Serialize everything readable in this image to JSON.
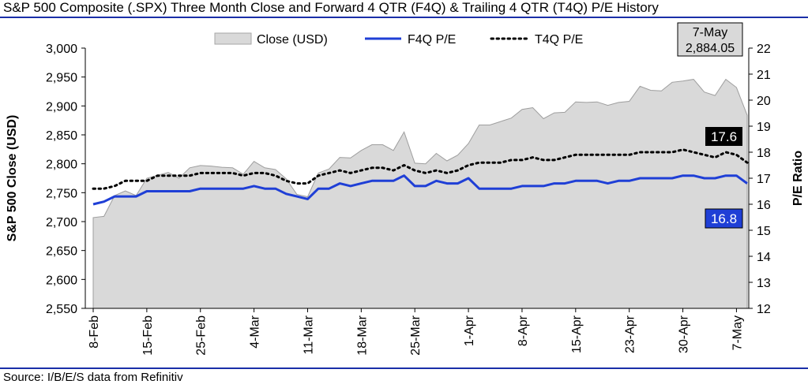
{
  "title": "S&P 500 Composite (.SPX) Three Month Close and Forward 4 QTR (F4Q) & Trailing 4 QTR (T4Q) P/E History",
  "source": "Source: I/B/E/S data from Refinitiv",
  "chart_data": {
    "type": "area",
    "ylabel": "S&P 500 Close (USD)",
    "y2label": "P/E Ratio",
    "ylim": [
      2550,
      3000
    ],
    "y2lim": [
      12,
      22
    ],
    "ticks_left": [
      "2,550",
      "2,600",
      "2,650",
      "2,700",
      "2,750",
      "2,800",
      "2,850",
      "2,900",
      "2,950",
      "3,000"
    ],
    "ticks_right": [
      "12",
      "13",
      "14",
      "15",
      "16",
      "17",
      "18",
      "19",
      "20",
      "21",
      "22"
    ],
    "x_tick_labels": [
      "8-Feb",
      "15-Feb",
      "25-Feb",
      "4-Mar",
      "11-Mar",
      "18-Mar",
      "25-Mar",
      "1-Apr",
      "8-Apr",
      "15-Apr",
      "23-Apr",
      "30-Apr",
      "7-May"
    ],
    "x_tick_index": [
      0,
      5,
      10,
      15,
      20,
      25,
      30,
      35,
      40,
      45,
      50,
      55,
      60
    ],
    "grid": false,
    "legend_position": "top",
    "series": [
      {
        "name": "Close (USD)",
        "axis": "left",
        "color": "#d9d9d9",
        "values": [
          2707,
          2709,
          2745,
          2753,
          2745,
          2775,
          2780,
          2785,
          2775,
          2793,
          2797,
          2796,
          2794,
          2793,
          2782,
          2804,
          2793,
          2790,
          2774,
          2747,
          2743,
          2784,
          2791,
          2811,
          2810,
          2823,
          2833,
          2833,
          2823,
          2855,
          2801,
          2800,
          2818,
          2805,
          2815,
          2835,
          2867,
          2867,
          2873,
          2879,
          2894,
          2897,
          2878,
          2888,
          2889,
          2907,
          2906,
          2907,
          2901,
          2906,
          2908,
          2934,
          2927,
          2926,
          2941,
          2943,
          2946,
          2924,
          2918,
          2946,
          2932,
          2884
        ]
      },
      {
        "name": "F4Q P/E",
        "axis": "right",
        "color": "#1f3fd6",
        "values": [
          16.0,
          16.1,
          16.3,
          16.3,
          16.3,
          16.5,
          16.5,
          16.5,
          16.5,
          16.5,
          16.6,
          16.6,
          16.6,
          16.6,
          16.6,
          16.7,
          16.6,
          16.6,
          16.4,
          16.3,
          16.2,
          16.6,
          16.6,
          16.8,
          16.7,
          16.8,
          16.9,
          16.9,
          16.9,
          17.1,
          16.7,
          16.7,
          16.9,
          16.8,
          16.8,
          17.0,
          16.6,
          16.6,
          16.6,
          16.6,
          16.7,
          16.7,
          16.7,
          16.8,
          16.8,
          16.9,
          16.9,
          16.9,
          16.8,
          16.9,
          16.9,
          17.0,
          17.0,
          17.0,
          17.0,
          17.1,
          17.1,
          17.0,
          17.0,
          17.1,
          17.1,
          16.8
        ]
      },
      {
        "name": "T4Q P/E",
        "axis": "right",
        "color": "#000000",
        "values": [
          16.6,
          16.6,
          16.7,
          16.9,
          16.9,
          16.9,
          17.1,
          17.1,
          17.1,
          17.1,
          17.2,
          17.2,
          17.2,
          17.2,
          17.1,
          17.2,
          17.2,
          17.1,
          16.9,
          16.8,
          16.8,
          17.1,
          17.2,
          17.3,
          17.2,
          17.3,
          17.4,
          17.4,
          17.3,
          17.5,
          17.3,
          17.2,
          17.3,
          17.2,
          17.3,
          17.5,
          17.6,
          17.6,
          17.6,
          17.7,
          17.7,
          17.8,
          17.7,
          17.7,
          17.8,
          17.9,
          17.9,
          17.9,
          17.9,
          17.9,
          17.9,
          18.0,
          18.0,
          18.0,
          18.0,
          18.1,
          18.0,
          17.9,
          17.8,
          18.0,
          17.9,
          17.6
        ]
      }
    ],
    "annotations": {
      "close_box": {
        "line1": "7-May",
        "line2": "2,884.05"
      },
      "t4q_box": {
        "label": "17.6",
        "bg": "#000000",
        "fg": "#ffffff"
      },
      "f4q_box": {
        "label": "16.8",
        "bg": "#1f3fd6",
        "fg": "#ffffff"
      }
    }
  }
}
